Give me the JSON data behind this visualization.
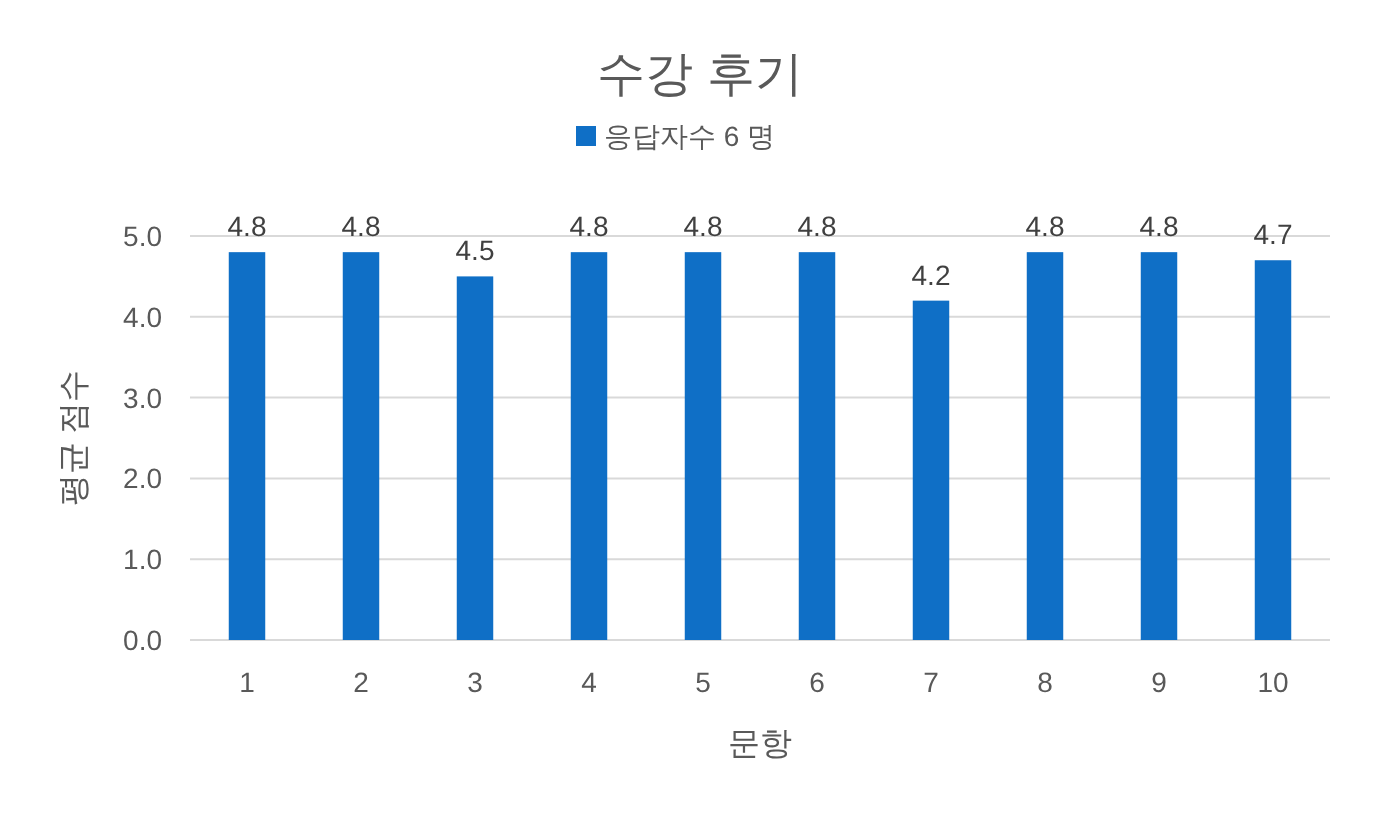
{
  "chart_data": {
    "type": "bar",
    "title": "수강 후기",
    "xlabel": "문항",
    "ylabel": "평균 점수",
    "categories": [
      "1",
      "2",
      "3",
      "4",
      "5",
      "6",
      "7",
      "8",
      "9",
      "10"
    ],
    "series": [
      {
        "name": "응답자수 6 명",
        "color": "#0f6fc6",
        "values": [
          4.8,
          4.8,
          4.5,
          4.8,
          4.8,
          4.8,
          4.2,
          4.8,
          4.8,
          4.7
        ]
      }
    ],
    "ylim": [
      0,
      5
    ],
    "yticks": [
      {
        "value": 0,
        "label": "0.0"
      },
      {
        "value": 1,
        "label": "1.0"
      },
      {
        "value": 2,
        "label": "2.0"
      },
      {
        "value": 3,
        "label": "3.0"
      },
      {
        "value": 4,
        "label": "4.0"
      },
      {
        "value": 5,
        "label": "5.0"
      }
    ],
    "grid": "y",
    "legend": "top",
    "data_labels": true
  }
}
